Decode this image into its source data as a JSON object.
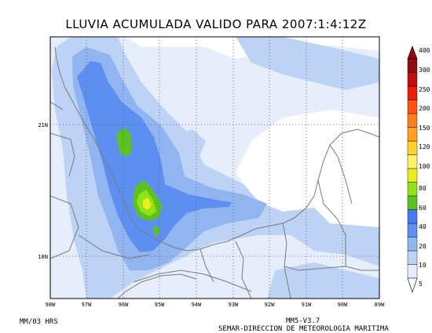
{
  "title": "LLUVIA ACUMULADA VALIDO PARA 2007:1:4:12Z",
  "footer": {
    "left": "MM/03 HRS",
    "model": "MM5-V3.7",
    "agency": "SEMAR-DIRECCION DE METEOROLOGIA MARITIMA"
  },
  "map": {
    "lon_labels": [
      "98W",
      "97W",
      "96W",
      "95W",
      "94W",
      "93W",
      "92W",
      "91W",
      "90W",
      "89W"
    ],
    "lat_labels": [
      "21N",
      "18N"
    ]
  },
  "legend": {
    "levels": [
      "5",
      "10",
      "20",
      "40",
      "60",
      "80",
      "100",
      "120",
      "150",
      "200",
      "250",
      "300",
      "400"
    ],
    "colors": [
      "#e6edfb",
      "#bdd3f5",
      "#91b5f0",
      "#5d8ff0",
      "#4a78f0",
      "#5ac31f",
      "#93e216",
      "#e7f01a",
      "#fff26a",
      "#ffd12a",
      "#ffa021",
      "#ff7e1a",
      "#ff5411",
      "#ee1b0b",
      "#c30d0e",
      "#8f0d0d"
    ]
  },
  "colors": {
    "land_outline": "#7a7a7a",
    "grid": "#555555"
  }
}
